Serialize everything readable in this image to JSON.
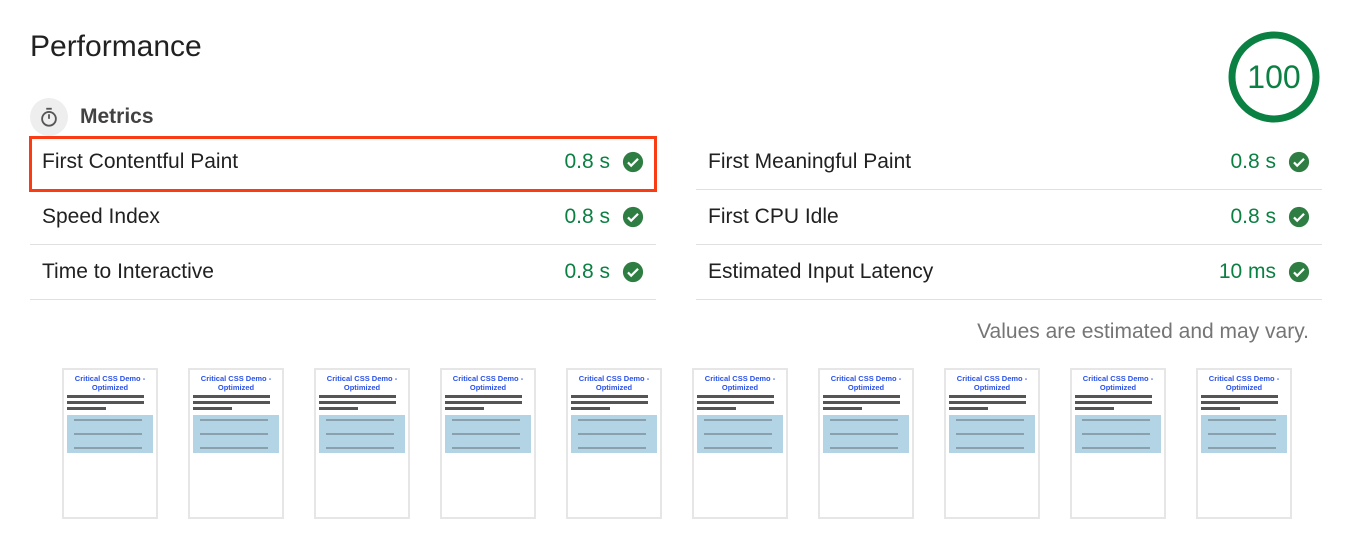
{
  "title": "Performance",
  "score": "100",
  "colors": {
    "pass": "#0b8043",
    "highlight": "#fa3c14"
  },
  "metrics_header": {
    "label": "Metrics",
    "icon": "stopwatch-icon"
  },
  "left": [
    {
      "name": "First Contentful Paint",
      "value": "0.8 s"
    },
    {
      "name": "Speed Index",
      "value": "0.8 s"
    },
    {
      "name": "Time to Interactive",
      "value": "0.8 s"
    }
  ],
  "right": [
    {
      "name": "First Meaningful Paint",
      "value": "0.8 s"
    },
    {
      "name": "First CPU Idle",
      "value": "0.8 s"
    },
    {
      "name": "Estimated Input Latency",
      "value": "10 ms"
    }
  ],
  "note": "Values are estimated and may vary.",
  "filmstrip": {
    "frame_title": "Critical CSS Demo - Optimized",
    "count": 10
  }
}
